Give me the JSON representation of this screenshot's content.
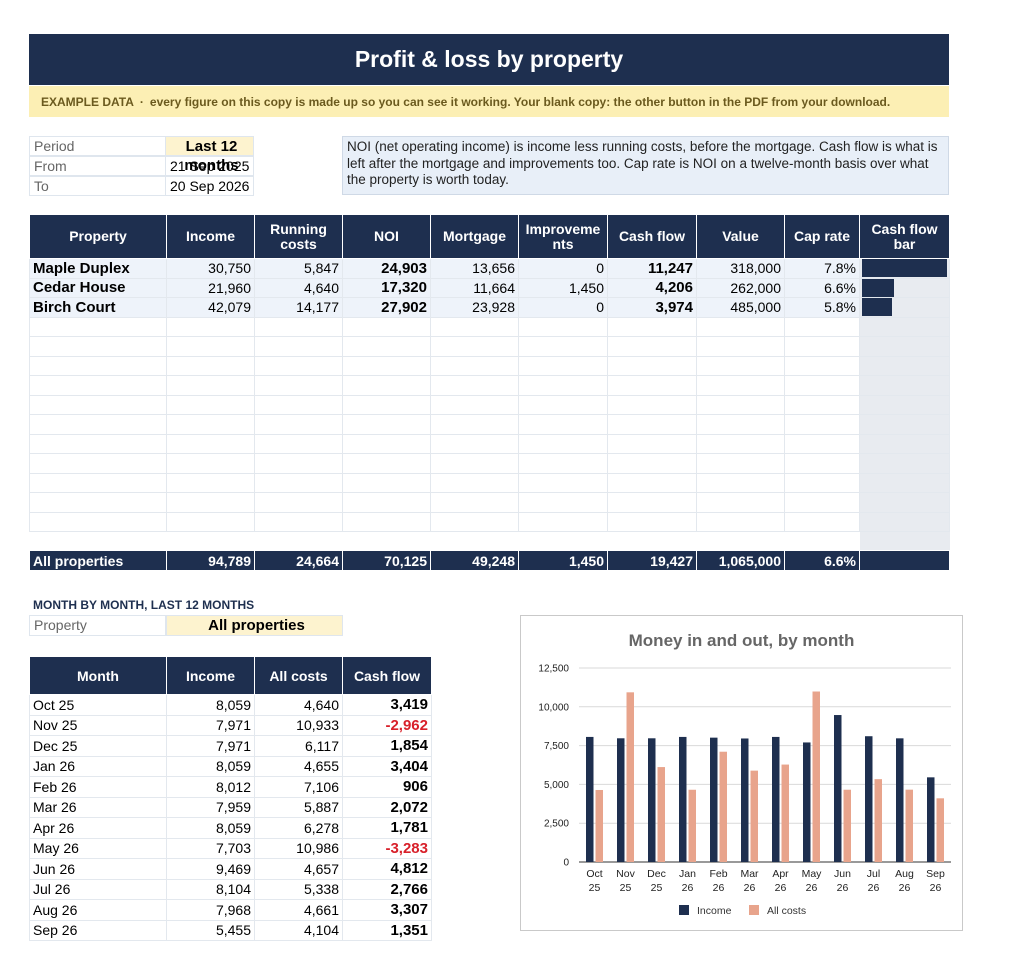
{
  "title": "Profit & loss by property",
  "banner": {
    "tag": "EXAMPLE DATA",
    "separator": "·",
    "message": "every figure on this copy is made up so you can see it working. Your blank copy: the other button in the PDF from your download."
  },
  "period": {
    "period_label": "Period",
    "period_value": "Last 12 months",
    "from_label": "From",
    "from_value": "21 Sep 2025",
    "to_label": "To",
    "to_value": "20 Sep 2026"
  },
  "note": "NOI (net operating income) is income less running costs, before the mortgage. Cash flow is what is left after the mortgage and improvements too. Cap rate is NOI on a twelve-month basis over what the property is worth today.",
  "main_table": {
    "headers": [
      "Property",
      "Income",
      "Running costs",
      "NOI",
      "Mortgage",
      "Improveme nts",
      "Cash flow",
      "Value",
      "Cap rate",
      "Cash flow bar"
    ],
    "rows": [
      {
        "property": "Maple Duplex",
        "income": "30,750",
        "running": "5,847",
        "noi": "24,903",
        "mortgage": "13,656",
        "improvements": "0",
        "cashflow": "11,247",
        "value": "318,000",
        "caprate": "7.8%",
        "bar_fraction": 1.0
      },
      {
        "property": "Cedar House",
        "income": "21,960",
        "running": "4,640",
        "noi": "17,320",
        "mortgage": "11,664",
        "improvements": "1,450",
        "cashflow": "4,206",
        "value": "262,000",
        "caprate": "6.6%",
        "bar_fraction": 0.374
      },
      {
        "property": "Birch Court",
        "income": "42,079",
        "running": "14,177",
        "noi": "27,902",
        "mortgage": "23,928",
        "improvements": "0",
        "cashflow": "3,974",
        "value": "485,000",
        "caprate": "5.8%",
        "bar_fraction": 0.353
      }
    ],
    "total": {
      "property": "All properties",
      "income": "94,789",
      "running": "24,664",
      "noi": "70,125",
      "mortgage": "49,248",
      "improvements": "1,450",
      "cashflow": "19,427",
      "value": "1,065,000",
      "caprate": "6.6%"
    }
  },
  "monthly": {
    "section_title": "MONTH BY MONTH, LAST 12 MONTHS",
    "property_label": "Property",
    "property_value": "All properties",
    "headers": [
      "Month",
      "Income",
      "All costs",
      "Cash flow"
    ],
    "rows": [
      {
        "month": "Oct 25",
        "income": "8,059",
        "costs": "4,640",
        "cashflow": "3,419",
        "negative": false
      },
      {
        "month": "Nov 25",
        "income": "7,971",
        "costs": "10,933",
        "cashflow": "-2,962",
        "negative": true
      },
      {
        "month": "Dec 25",
        "income": "7,971",
        "costs": "6,117",
        "cashflow": "1,854",
        "negative": false
      },
      {
        "month": "Jan 26",
        "income": "8,059",
        "costs": "4,655",
        "cashflow": "3,404",
        "negative": false
      },
      {
        "month": "Feb 26",
        "income": "8,012",
        "costs": "7,106",
        "cashflow": "906",
        "negative": false
      },
      {
        "month": "Mar 26",
        "income": "7,959",
        "costs": "5,887",
        "cashflow": "2,072",
        "negative": false
      },
      {
        "month": "Apr 26",
        "income": "8,059",
        "costs": "6,278",
        "cashflow": "1,781",
        "negative": false
      },
      {
        "month": "May 26",
        "income": "7,703",
        "costs": "10,986",
        "cashflow": "-3,283",
        "negative": true
      },
      {
        "month": "Jun 26",
        "income": "9,469",
        "costs": "4,657",
        "cashflow": "4,812",
        "negative": false
      },
      {
        "month": "Jul 26",
        "income": "8,104",
        "costs": "5,338",
        "cashflow": "2,766",
        "negative": false
      },
      {
        "month": "Aug 26",
        "income": "7,968",
        "costs": "4,661",
        "cashflow": "3,307",
        "negative": false
      },
      {
        "month": "Sep 26",
        "income": "5,455",
        "costs": "4,104",
        "cashflow": "1,351",
        "negative": false
      }
    ]
  },
  "colors": {
    "navy": "#1e2f4f",
    "salmon": "#e8a48c",
    "negative": "#d8202a",
    "highlight": "#fdf3cf"
  },
  "chart_data": {
    "type": "bar",
    "title": "Money in and out, by month",
    "categories": [
      [
        "Oct",
        "25"
      ],
      [
        "Nov",
        "25"
      ],
      [
        "Dec",
        "25"
      ],
      [
        "Jan",
        "26"
      ],
      [
        "Feb",
        "26"
      ],
      [
        "Mar",
        "26"
      ],
      [
        "Apr",
        "26"
      ],
      [
        "May",
        "26"
      ],
      [
        "Jun",
        "26"
      ],
      [
        "Jul",
        "26"
      ],
      [
        "Aug",
        "26"
      ],
      [
        "Sep",
        "26"
      ]
    ],
    "series": [
      {
        "name": "Income",
        "color": "#1e2f4f",
        "values": [
          8059,
          7971,
          7971,
          8059,
          8012,
          7959,
          8059,
          7703,
          9469,
          8104,
          7968,
          5455
        ]
      },
      {
        "name": "All costs",
        "color": "#e8a48c",
        "values": [
          4640,
          10933,
          6117,
          4655,
          7106,
          5887,
          6278,
          10986,
          4657,
          5338,
          4661,
          4104
        ]
      }
    ],
    "yticks": [
      "0",
      "2,500",
      "5,000",
      "7,500",
      "10,000",
      "12,500"
    ],
    "ylim": [
      0,
      12500
    ],
    "grid": true,
    "legend": "bottom"
  }
}
